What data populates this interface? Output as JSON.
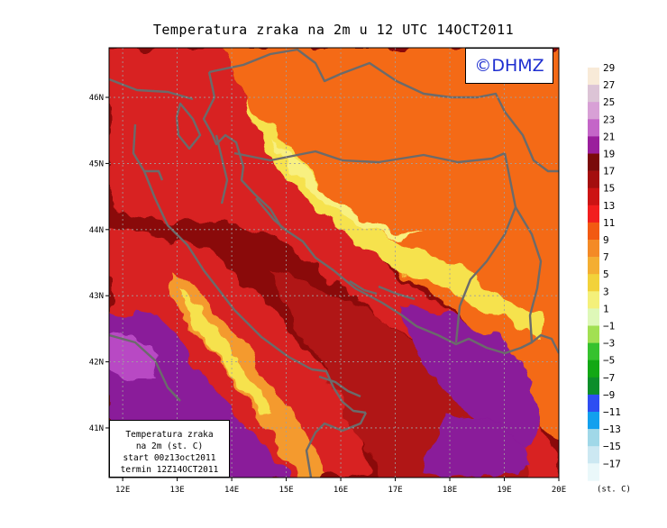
{
  "title": "Temperatura zraka na 2m u 12 UTC 14OCT2011",
  "logo": "©DHMZ",
  "info_box": {
    "line1": "Temperatura zraka",
    "line2": "na 2m (st. C)",
    "line3": "start 00z13oct2011",
    "line4": "termin 12Z14OCT2011"
  },
  "map": {
    "lon_range": [
      11.75,
      20.0
    ],
    "lat_range": [
      40.25,
      46.75
    ],
    "x_ticks": [
      {
        "value": 12,
        "label": "12E"
      },
      {
        "value": 13,
        "label": "13E"
      },
      {
        "value": 14,
        "label": "14E"
      },
      {
        "value": 15,
        "label": "15E"
      },
      {
        "value": 16,
        "label": "16E"
      },
      {
        "value": 17,
        "label": "17E"
      },
      {
        "value": 18,
        "label": "18E"
      },
      {
        "value": 19,
        "label": "19E"
      },
      {
        "value": 20,
        "label": "20E"
      }
    ],
    "y_ticks": [
      {
        "value": 41,
        "label": "41N"
      },
      {
        "value": 42,
        "label": "42N"
      },
      {
        "value": 43,
        "label": "43N"
      },
      {
        "value": 44,
        "label": "44N"
      },
      {
        "value": 45,
        "label": "45N"
      },
      {
        "value": 46,
        "label": "46N"
      }
    ],
    "colors": {
      "c19": "#8a0a0a",
      "c17": "#b01414",
      "c15": "#d82020",
      "c13": "#f03c14",
      "c11": "#f46a12",
      "c9": "#f49a2e",
      "c7": "#f2c830",
      "c5": "#f6e24e",
      "c3": "#f8f080",
      "c21": "#8a1a9a",
      "c23": "#b84ac4",
      "coast": "#6b6b6b"
    }
  },
  "colorbar": {
    "unit": "(st. C)",
    "levels": [
      {
        "label": "29",
        "color": "#f8ead8"
      },
      {
        "label": "27",
        "color": "#dcc4d6"
      },
      {
        "label": "25",
        "color": "#d8a0d6"
      },
      {
        "label": "23",
        "color": "#c466c8"
      },
      {
        "label": "21",
        "color": "#9a1e9c"
      },
      {
        "label": "19",
        "color": "#7a0a0a"
      },
      {
        "label": "17",
        "color": "#a40e0e"
      },
      {
        "label": "15",
        "color": "#cc1414"
      },
      {
        "label": "13",
        "color": "#f21e1e"
      },
      {
        "label": "11",
        "color": "#f25a12"
      },
      {
        "label": "9",
        "color": "#f48a26"
      },
      {
        "label": "7",
        "color": "#f4ae32"
      },
      {
        "label": "5",
        "color": "#f2d23a"
      },
      {
        "label": "3",
        "color": "#f4f07a"
      },
      {
        "label": "1",
        "color": "#def8b8"
      },
      {
        "label": "−1",
        "color": "#a2e052"
      },
      {
        "label": "−3",
        "color": "#36c22e"
      },
      {
        "label": "−5",
        "color": "#12a814"
      },
      {
        "label": "−7",
        "color": "#0c8e2a"
      },
      {
        "label": "−9",
        "color": "#2e4ef2"
      },
      {
        "label": "−11",
        "color": "#12a0ee"
      },
      {
        "label": "−13",
        "color": "#a0d8e8"
      },
      {
        "label": "−15",
        "color": "#cce8f2"
      },
      {
        "label": "−17",
        "color": "#eaf8fa"
      }
    ]
  }
}
